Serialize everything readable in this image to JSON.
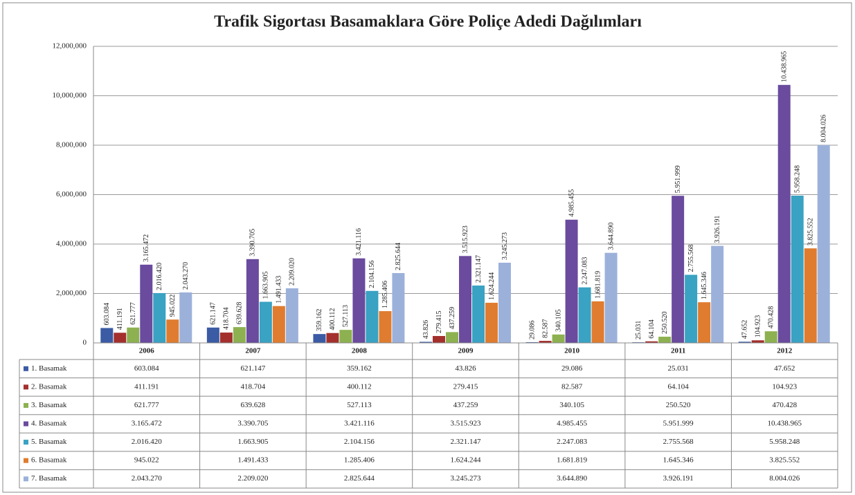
{
  "chart_data": {
    "type": "bar",
    "title": "Trafik Sigortası Basamaklara Göre Poliçe Adedi Dağılımları",
    "categories": [
      "2006",
      "2007",
      "2008",
      "2009",
      "2010",
      "2011",
      "2012"
    ],
    "series": [
      {
        "name": "1. Basamak",
        "color": "#3b5ba5",
        "values": [
          603084,
          621147,
          359162,
          43826,
          29086,
          25031,
          47652
        ],
        "value_labels": [
          "603.084",
          "621.147",
          "359.162",
          "43.826",
          "29.086",
          "25.031",
          "47.652"
        ]
      },
      {
        "name": "2. Basamak",
        "color": "#a3302d",
        "values": [
          411191,
          418704,
          400112,
          279415,
          82587,
          64104,
          104923
        ],
        "value_labels": [
          "411.191",
          "418.704",
          "400.112",
          "279.415",
          "82.587",
          "64.104",
          "104.923"
        ]
      },
      {
        "name": "3. Basamak",
        "color": "#8db150",
        "values": [
          621777,
          639628,
          527113,
          437259,
          340105,
          250520,
          470428
        ],
        "value_labels": [
          "621.777",
          "639.628",
          "527.113",
          "437.259",
          "340.105",
          "250.520",
          "470.428"
        ]
      },
      {
        "name": "4. Basamak",
        "color": "#6a4b9e",
        "values": [
          3165472,
          3390705,
          3421116,
          3515923,
          4985455,
          5951999,
          10438965
        ],
        "value_labels": [
          "3.165.472",
          "3.390.705",
          "3.421.116",
          "3.515.923",
          "4.985.455",
          "5.951.999",
          "10.438.965"
        ]
      },
      {
        "name": "5. Basamak",
        "color": "#3aa2c2",
        "values": [
          2016420,
          1663905,
          2104156,
          2321147,
          2247083,
          2755568,
          5958248
        ],
        "value_labels": [
          "2.016.420",
          "1.663.905",
          "2.104.156",
          "2.321.147",
          "2.247.083",
          "2.755.568",
          "5.958.248"
        ]
      },
      {
        "name": "6. Basamak",
        "color": "#e07c2f",
        "values": [
          945022,
          1491433,
          1285406,
          1624244,
          1681819,
          1645346,
          3825552
        ],
        "value_labels": [
          "945.022",
          "1.491.433",
          "1.285.406",
          "1.624.244",
          "1.681.819",
          "1.645.346",
          "3.825.552"
        ]
      },
      {
        "name": "7. Basamak",
        "color": "#9cb1da",
        "values": [
          2043270,
          2209020,
          2825644,
          3245273,
          3644890,
          3926191,
          8004026
        ],
        "value_labels": [
          "2.043.270",
          "2.209.020",
          "2.825.644",
          "3.245.273",
          "3.644.890",
          "3.926.191",
          "8.004.026"
        ]
      }
    ],
    "ylim": [
      0,
      12000000
    ],
    "yticks": [
      0,
      {
        "value": 2000000,
        "label": "2,000,000"
      },
      {
        "value": 4000000,
        "label": "4,000,000"
      },
      {
        "value": 6000000,
        "label": "6,000,000"
      },
      {
        "value": 8000000,
        "label": "8,000,000"
      },
      {
        "value": 10000000,
        "label": "10,000,000"
      },
      {
        "value": 12000000,
        "label": "12,000,000"
      }
    ],
    "grid": true
  }
}
